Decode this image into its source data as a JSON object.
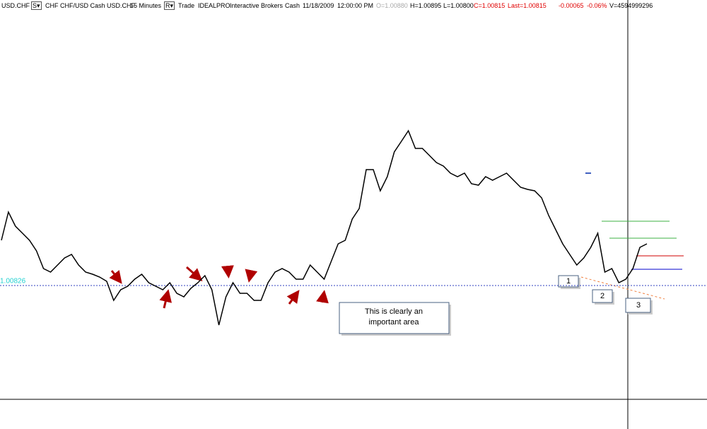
{
  "header": {
    "items": [
      "USD.CHF",
      "S▾",
      "CHF CHF/USD Cash USD.CHF",
      "15 Minutes",
      "R▾",
      "Trade",
      "IDEALPRO",
      "Interactive Brokers",
      "Cash",
      "11/18/2009",
      "12:00:00 PM",
      "O=1.00880",
      "H=1.00895",
      "L=1.00800",
      "C=1.00815",
      "Last=1.00815",
      "-0.00065",
      "-0.06%",
      "V=4594999296"
    ]
  },
  "chart_data": {
    "type": "line",
    "color": "#000000",
    "values": [
      1.0089,
      1.0093,
      1.0091,
      1.009,
      1.0089,
      1.00875,
      1.0085,
      1.00845,
      1.00855,
      1.00865,
      1.0087,
      1.00855,
      1.00845,
      1.00842,
      1.00838,
      1.00832,
      1.00805,
      1.0082,
      1.00825,
      1.00835,
      1.00842,
      1.0083,
      1.00825,
      1.0082,
      1.0083,
      1.00815,
      1.0081,
      1.00822,
      1.0083,
      1.0084,
      1.0082,
      1.0077,
      1.0081,
      1.0083,
      1.00815,
      1.00815,
      1.00805,
      1.00805,
      1.0083,
      1.00845,
      1.0085,
      1.00845,
      1.00835,
      1.00835,
      1.00855,
      1.00845,
      1.00835,
      1.0086,
      1.00885,
      1.0089,
      1.0092,
      1.00935,
      1.0099,
      1.0099,
      1.0096,
      1.0098,
      1.01015,
      1.0103,
      1.01045,
      1.0102,
      1.0102,
      1.0101,
      1.01,
      1.00995,
      1.00985,
      1.0098,
      1.00985,
      1.0097,
      1.00968,
      1.0098,
      1.00975,
      1.0098,
      1.00985,
      1.00975,
      1.00965,
      1.00962,
      1.0096,
      1.0095,
      1.00925,
      1.00905,
      1.00885,
      1.0087,
      1.00855,
      1.00865,
      1.0088,
      1.009,
      1.00845,
      1.0085,
      1.0083,
      1.00835,
      1.0085,
      1.0088,
      1.00885
    ],
    "ylim": [
      1.00665,
      1.0121
    ],
    "reference_line": 1.00826,
    "annotations": [
      "This is clearly an important area",
      "1",
      "2",
      "3"
    ]
  }
}
